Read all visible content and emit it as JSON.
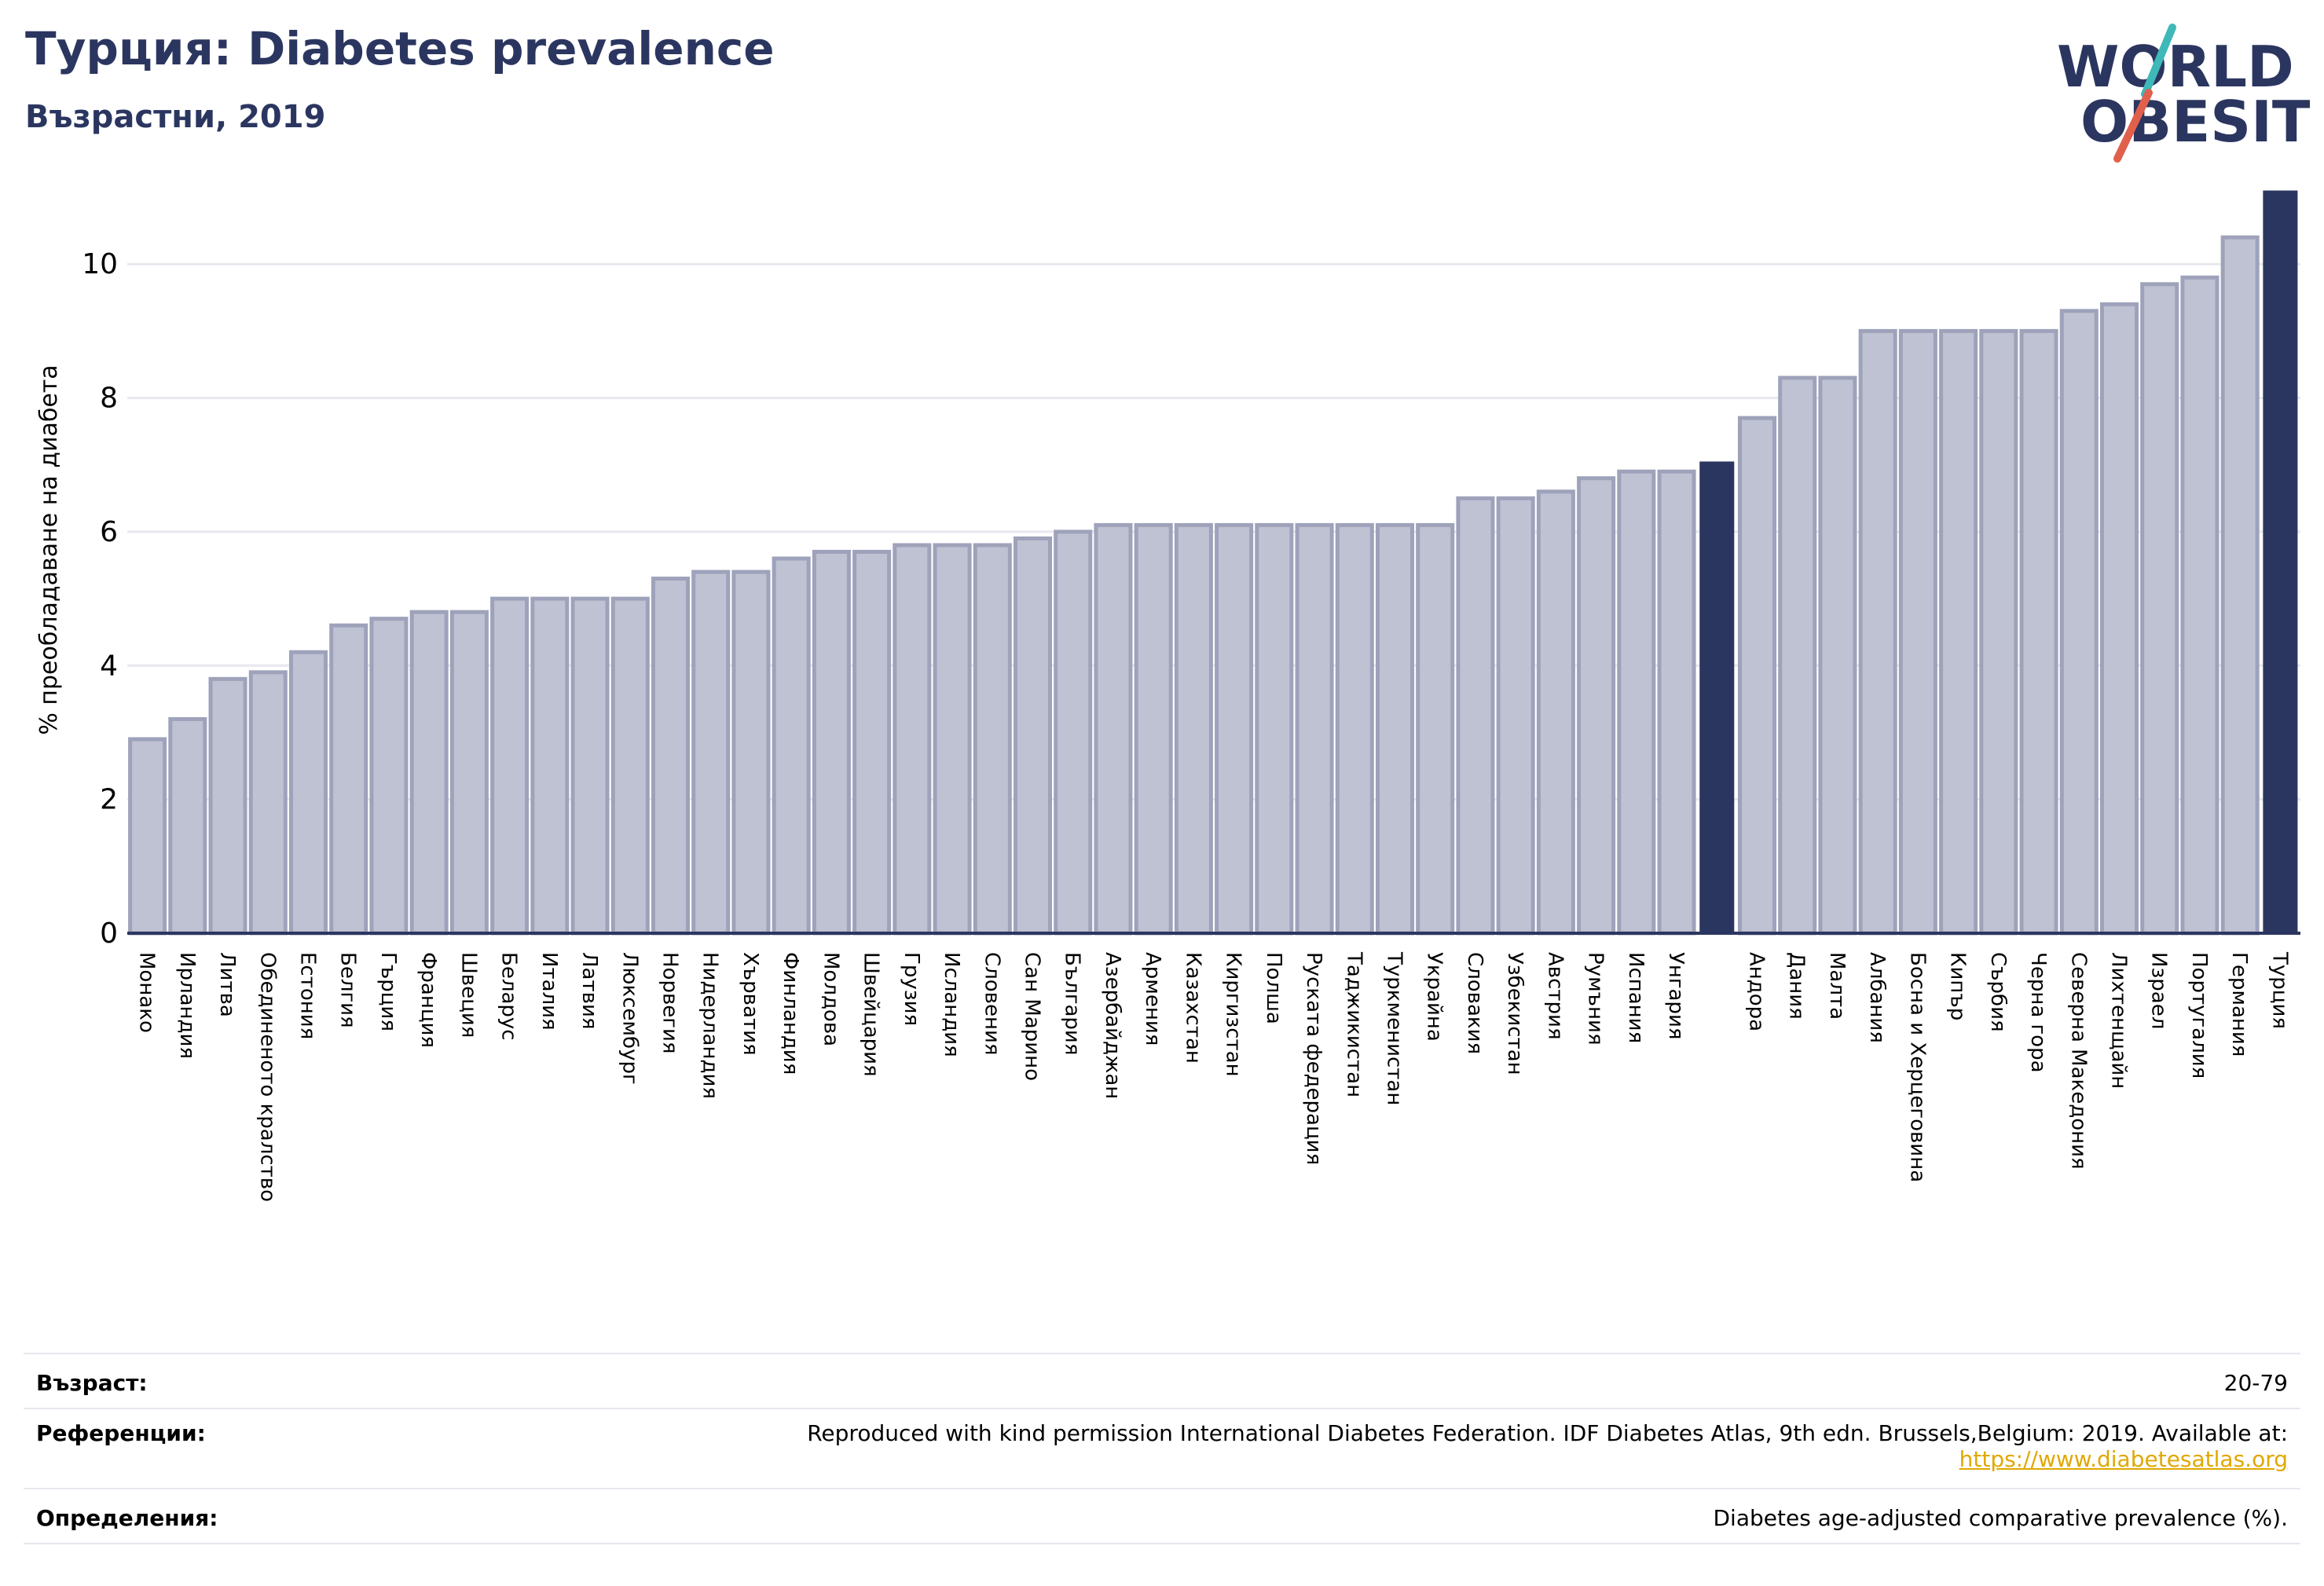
{
  "header": {
    "title": "Турция: Diabetes prevalence",
    "subtitle": "Възрастни, 2019"
  },
  "logo": {
    "line1": "WORLD",
    "line2": "OBESITY"
  },
  "chart_data": {
    "type": "bar",
    "title": "Турция: Diabetes prevalence",
    "subtitle": "Възрастни, 2019",
    "ylabel": "% преобладаване на диабета",
    "xlabel": "",
    "ylim": [
      0,
      11.2
    ],
    "yticks": [
      0,
      2,
      4,
      6,
      8,
      10
    ],
    "grid": true,
    "categories": [
      "Монако",
      "Ирландия",
      "Литва",
      "Обединеното кралство",
      "Естония",
      "Белгия",
      "Гърция",
      "Франция",
      "Швеция",
      "Беларус",
      "Италия",
      "Латвия",
      "Люксембург",
      "Норвегия",
      "Нидерландия",
      "Хърватия",
      "Финландия",
      "Молдова",
      "Швейцария",
      "Грузия",
      "Исландия",
      "Словения",
      "Сан Марино",
      "България",
      "Азербайджан",
      "Армения",
      "Казахстан",
      "Киргизстан",
      "Полша",
      "Руската федерация",
      "Таджикистан",
      "Туркменистан",
      "Украйна",
      "Словакия",
      "Узбекистан",
      "Австрия",
      "Румъния",
      "Испания",
      "Унгария",
      "",
      "Андора",
      "Дания",
      "Малта",
      "Албания",
      "Босна и Херцеговина",
      "Кипър",
      "Сърбия",
      "Черна гора",
      "Северна Македония",
      "Лихтенщайн",
      "Израел",
      "Португалия",
      "Германия",
      "Турция"
    ],
    "values": [
      2.9,
      3.2,
      3.8,
      3.9,
      4.2,
      4.6,
      4.7,
      4.8,
      4.8,
      5.0,
      5.0,
      5.0,
      5.0,
      5.3,
      5.4,
      5.4,
      5.6,
      5.7,
      5.7,
      5.8,
      5.8,
      5.8,
      5.9,
      6.0,
      6.1,
      6.1,
      6.1,
      6.1,
      6.1,
      6.1,
      6.1,
      6.1,
      6.1,
      6.5,
      6.5,
      6.6,
      6.8,
      6.9,
      6.9,
      7.05,
      7.7,
      8.3,
      8.3,
      9.0,
      9.0,
      9.0,
      9.0,
      9.0,
      9.3,
      9.4,
      9.7,
      9.8,
      10.4,
      11.1
    ],
    "highlight_indices": [
      39,
      53
    ],
    "colors": {
      "bar": "#bfc2d2",
      "bar_edge": "#9ea2ba",
      "highlight": "#2b3660",
      "grid": "#e8e8ee",
      "axis": "#2b3660"
    }
  },
  "footer": {
    "age_label": "Възраст:",
    "age_value": "20-79",
    "refs_label": "Референции:",
    "refs_text": "Reproduced with kind permission International Diabetes Federation. IDF Diabetes Atlas, 9th edn. Brussels,Belgium: 2019. Available at:",
    "refs_link": "https://www.diabetesatlas.org",
    "defs_label": "Определения:",
    "defs_text": "Diabetes age-adjusted comparative prevalence (%)."
  }
}
